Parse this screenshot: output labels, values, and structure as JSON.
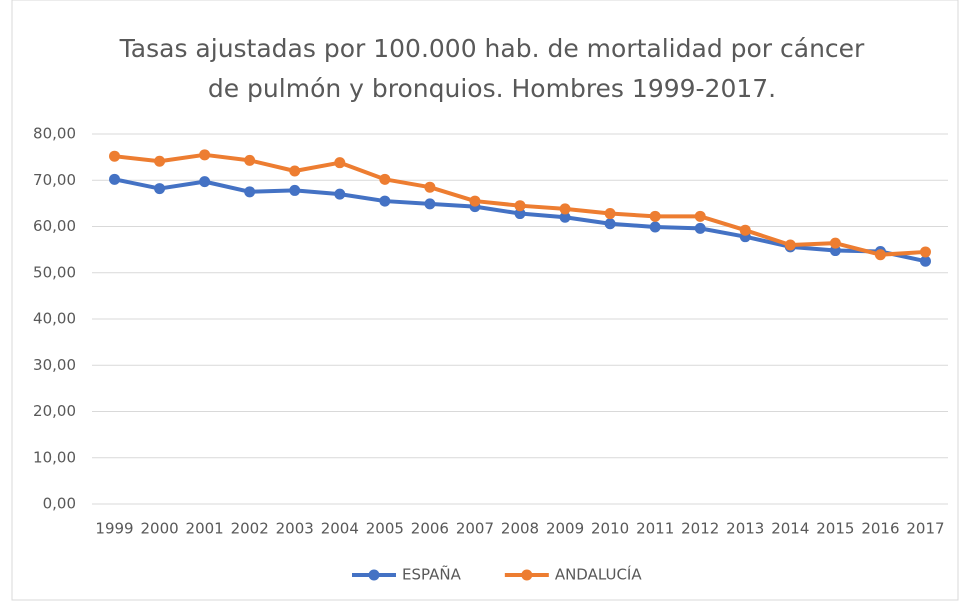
{
  "chart_data": {
    "type": "line",
    "title": [
      "Tasas ajustadas por 100.000 hab. de mortalidad por cáncer",
      "de pulmón y bronquios. Hombres 1999-2017."
    ],
    "categories": [
      "1999",
      "2000",
      "2001",
      "2002",
      "2003",
      "2004",
      "2005",
      "2006",
      "2007",
      "2008",
      "2009",
      "2010",
      "2011",
      "2012",
      "2013",
      "2014",
      "2015",
      "2016",
      "2017"
    ],
    "series": [
      {
        "name": "ESPAÑA",
        "color": "#4472c4",
        "values": [
          70.2,
          68.2,
          69.7,
          67.5,
          67.8,
          67.0,
          65.5,
          64.9,
          64.3,
          62.8,
          62.0,
          60.6,
          59.9,
          59.6,
          57.8,
          55.6,
          54.8,
          54.6,
          52.5
        ]
      },
      {
        "name": "ANDALUCÍA",
        "color": "#ed7d31",
        "values": [
          75.2,
          74.1,
          75.5,
          74.3,
          72.0,
          73.8,
          70.2,
          68.5,
          65.5,
          64.5,
          63.8,
          62.8,
          62.2,
          62.2,
          59.2,
          56.0,
          56.4,
          53.9,
          54.5
        ]
      }
    ],
    "ylim": [
      0,
      80
    ],
    "yticks": [
      {
        "value": 0,
        "label": "0,00"
      },
      {
        "value": 10,
        "label": "10,00"
      },
      {
        "value": 20,
        "label": "20,00"
      },
      {
        "value": 30,
        "label": "30,00"
      },
      {
        "value": 40,
        "label": "40,00"
      },
      {
        "value": 50,
        "label": "50,00"
      },
      {
        "value": 60,
        "label": "60,00"
      },
      {
        "value": 70,
        "label": "70,00"
      },
      {
        "value": 80,
        "label": "80,00"
      }
    ],
    "grid": true,
    "legend": "bottom"
  }
}
